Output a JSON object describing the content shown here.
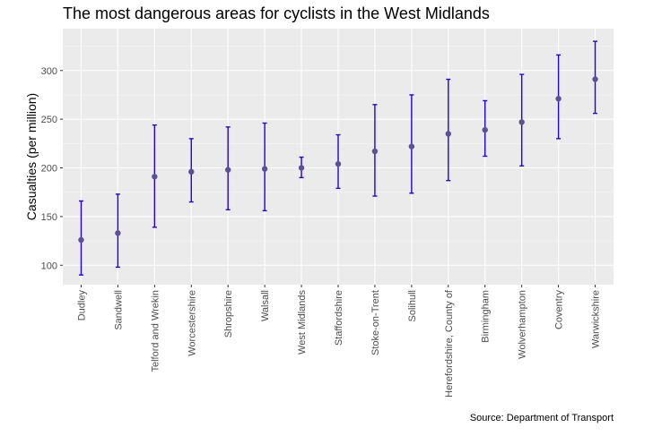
{
  "colors": {
    "panel_background": "#ebebeb",
    "grid_major": "#ffffff",
    "grid_minor": "#f5f5f5",
    "error_bar": "#2200dd",
    "point": "#5e4f96",
    "tick_text": "#4d4d4d",
    "text": "#000000"
  },
  "caption": "Source: Department of Transport",
  "chart_data": {
    "type": "scatter",
    "title": "The most dangerous areas for cyclists in the West Midlands",
    "xlabel": "",
    "ylabel": "Casualties (per million)",
    "ylim": [
      80,
      343
    ],
    "yticks": [
      100,
      150,
      200,
      250,
      300
    ],
    "grid": true,
    "legend": "none",
    "error_bars": true,
    "categories": [
      "Dudley",
      "Sandwell",
      "Telford and Wrekin",
      "Worcestershire",
      "Shropshire",
      "Walsall",
      "West Midlands",
      "Staffordshire",
      "Stoke-on-Trent",
      "Solihull",
      "Herefordshire, County of",
      "Birmingham",
      "Wolverhampton",
      "Coventry",
      "Warwickshire"
    ],
    "values": [
      126,
      133,
      191,
      196,
      198,
      199,
      200,
      204,
      217,
      222,
      235,
      239,
      247,
      271,
      291
    ],
    "lower": [
      90,
      98,
      139,
      165,
      157,
      156,
      190,
      179,
      171,
      174,
      187,
      212,
      202,
      230,
      256
    ],
    "upper": [
      166,
      173,
      244,
      230,
      242,
      246,
      211,
      234,
      265,
      275,
      291,
      269,
      296,
      316,
      330
    ]
  }
}
